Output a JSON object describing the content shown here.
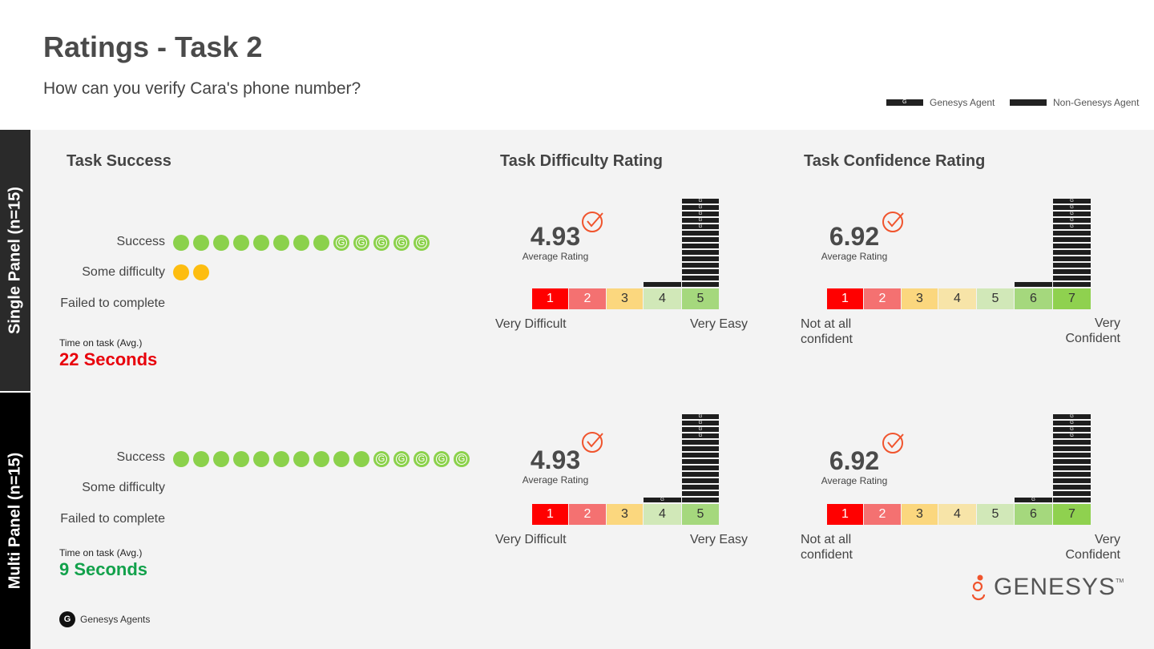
{
  "header": {
    "title": "Ratings - Task 2",
    "subtitle": "How can you verify Cara's phone number?",
    "legend": [
      {
        "label": "Genesys Agent",
        "marker": "G"
      },
      {
        "label": "Non-Genesys Agent",
        "marker": ""
      }
    ]
  },
  "sections": {
    "success": "Task Success",
    "difficulty": "Task Difficulty Rating",
    "confidence": "Task Confidence Rating"
  },
  "row_labels": {
    "success": "Success",
    "some_difficulty": "Some difficulty",
    "failed": "Failed to complete"
  },
  "time_label": "Time on task (Avg.)",
  "average_label": "Average Rating",
  "difficulty_ends": {
    "low": "Very Difficult",
    "high": "Very Easy"
  },
  "confidence_ends": {
    "low": "Not at all confident",
    "high": "Very Confident"
  },
  "footer": {
    "genesys_agents": "Genesys Agents",
    "logo_text": "GENESYS",
    "logo_tm": "TM",
    "g_marker": "G"
  },
  "colors": {
    "success_dot": "#8bd14b",
    "difficulty_dot": "#fdbd10",
    "scale": [
      "#ff0000",
      "#f47171",
      "#fbd77e",
      "#f7e4a8",
      "#d1e8b8",
      "#a5d87d",
      "#8fd14f"
    ],
    "bar": "#1e1e1e",
    "check": "#f0542d",
    "time_slow": "#e8000b",
    "time_fast": "#12a14b"
  },
  "chart_data": [
    {
      "type": "dot",
      "panel": "Single Panel (n=15)",
      "title": "Task Success",
      "rows": [
        {
          "label": "Success",
          "non_genesys": 8,
          "genesys": 5
        },
        {
          "label": "Some difficulty",
          "non_genesys": 2,
          "genesys": 0
        },
        {
          "label": "Failed to complete",
          "non_genesys": 0,
          "genesys": 0
        }
      ],
      "time_on_task": "22 Seconds"
    },
    {
      "type": "bar",
      "panel": "Single Panel (n=15)",
      "title": "Task Difficulty Rating",
      "average": "4.93",
      "categories": [
        "1",
        "2",
        "3",
        "4",
        "5"
      ],
      "series": [
        {
          "name": "Non-Genesys Agent",
          "values": [
            0,
            0,
            0,
            1,
            9
          ]
        },
        {
          "name": "Genesys Agent",
          "values": [
            0,
            0,
            0,
            0,
            5
          ]
        }
      ]
    },
    {
      "type": "bar",
      "panel": "Single Panel (n=15)",
      "title": "Task Confidence Rating",
      "average": "6.92",
      "categories": [
        "1",
        "2",
        "3",
        "4",
        "5",
        "6",
        "7"
      ],
      "series": [
        {
          "name": "Non-Genesys Agent",
          "values": [
            0,
            0,
            0,
            0,
            0,
            1,
            9
          ]
        },
        {
          "name": "Genesys Agent",
          "values": [
            0,
            0,
            0,
            0,
            0,
            0,
            5
          ]
        }
      ]
    },
    {
      "type": "dot",
      "panel": "Multi Panel (n=15)",
      "title": "Task Success",
      "rows": [
        {
          "label": "Success",
          "non_genesys": 10,
          "genesys": 5
        },
        {
          "label": "Some difficulty",
          "non_genesys": 0,
          "genesys": 0
        },
        {
          "label": "Failed to complete",
          "non_genesys": 0,
          "genesys": 0
        }
      ],
      "time_on_task": "9 Seconds"
    },
    {
      "type": "bar",
      "panel": "Multi Panel (n=15)",
      "title": "Task Difficulty Rating",
      "average": "4.93",
      "categories": [
        "1",
        "2",
        "3",
        "4",
        "5"
      ],
      "series": [
        {
          "name": "Non-Genesys Agent",
          "values": [
            0,
            0,
            0,
            0,
            10
          ]
        },
        {
          "name": "Genesys Agent",
          "values": [
            0,
            0,
            0,
            1,
            4
          ]
        }
      ]
    },
    {
      "type": "bar",
      "panel": "Multi Panel (n=15)",
      "title": "Task Confidence Rating",
      "average": "6.92",
      "categories": [
        "1",
        "2",
        "3",
        "4",
        "5",
        "6",
        "7"
      ],
      "series": [
        {
          "name": "Non-Genesys Agent",
          "values": [
            0,
            0,
            0,
            0,
            0,
            0,
            10
          ]
        },
        {
          "name": "Genesys Agent",
          "values": [
            0,
            0,
            0,
            0,
            0,
            1,
            4
          ]
        }
      ]
    }
  ]
}
